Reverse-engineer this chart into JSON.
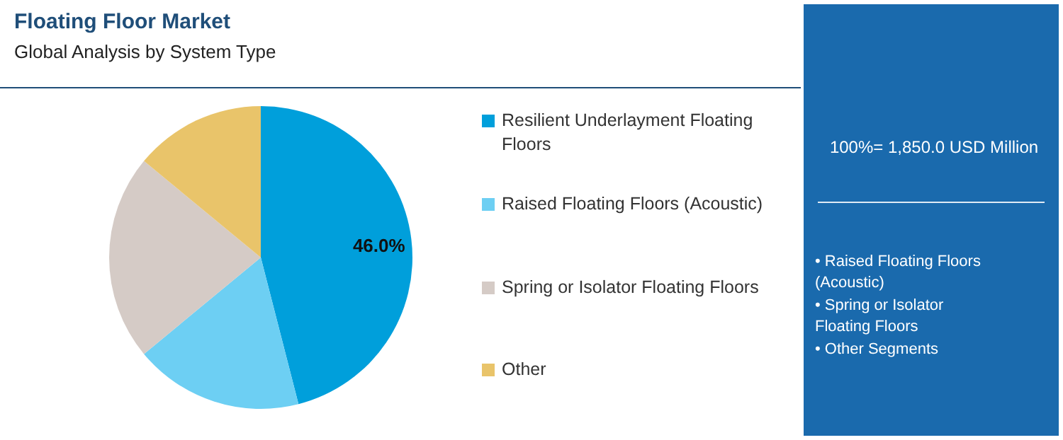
{
  "chart_data": {
    "type": "pie",
    "title": "Floating Floor Market",
    "subtitle": "Global Analysis by System Type",
    "categories": [
      "Resilient Underlayment Floating Floors",
      "Raised Floating Floors (Acoustic)",
      "Spring or Isolator Floating Floors",
      "Other"
    ],
    "values": [
      46,
      18,
      22,
      14
    ],
    "colors": [
      "#009fdb",
      "#6dcff3",
      "#d5cbc6",
      "#e9c46a"
    ],
    "value_labels": [
      "46.0%",
      null,
      null,
      null
    ],
    "legend": "right",
    "annotations": [
      "100%= 1,850.0 USD Million",
      "• Raised Floating Floors (Acoustic)",
      "• Spring or Isolator Floating Floors",
      "• Other Segments"
    ]
  }
}
